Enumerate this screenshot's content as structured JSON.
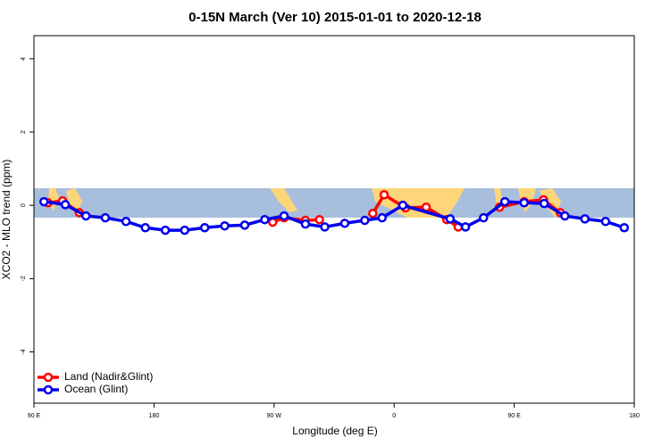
{
  "chart_data": {
    "type": "line",
    "title": "0-15N March (Ver 10)   2015-01-01 to 2020-12-18",
    "x_label": "Longitude (deg E)",
    "y_label": "XCO2 - MLO trend (ppm)",
    "xlim": [
      90,
      540
    ],
    "xticks": [
      {
        "value": 90,
        "label": "90 E"
      },
      180,
      {
        "value": 270,
        "label": "90 W"
      },
      {
        "value": 360,
        "label": "0"
      },
      {
        "value": 450,
        "label": "90 E"
      },
      {
        "value": 540,
        "label": "180"
      }
    ],
    "ylim": [
      -5.4,
      4.63
    ],
    "yticks": [
      -4,
      -2,
      0,
      2,
      4
    ],
    "legend": "bottom-left",
    "series": [
      {
        "name": "Land (Nadir&Glint)",
        "color": "#ff0000",
        "x": [
          100.5,
          111.5,
          124,
          null,
          269,
          277.5,
          293.5,
          304,
          null,
          344,
          352.5,
          368.5,
          384,
          399.5,
          408,
          null,
          439,
          457.5,
          472,
          484.5
        ],
        "values": [
          0.07,
          0.12,
          -0.2,
          null,
          -0.46,
          -0.34,
          -0.41,
          -0.39,
          null,
          -0.22,
          0.29,
          -0.07,
          -0.05,
          -0.39,
          -0.59,
          null,
          -0.05,
          0.1,
          0.15,
          -0.2
        ]
      },
      {
        "name": "Ocean (Glint)",
        "color": "#0000ee",
        "x": [
          97.5,
          113.5,
          129,
          143.5,
          159,
          173.5,
          188.5,
          203,
          218,
          233,
          248,
          263,
          277.5,
          293.5,
          308,
          323,
          338,
          351,
          366.5,
          402,
          413.5,
          427,
          443,
          457.5,
          472.5,
          488,
          503,
          518.5,
          532.5
        ],
        "values": [
          0.1,
          0.02,
          -0.29,
          -0.34,
          -0.44,
          -0.61,
          -0.68,
          -0.68,
          -0.61,
          -0.56,
          -0.54,
          -0.39,
          -0.29,
          -0.51,
          -0.59,
          -0.49,
          -0.41,
          -0.34,
          0,
          -0.37,
          -0.59,
          -0.34,
          0.1,
          0.07,
          0.05,
          -0.29,
          -0.37,
          -0.44,
          -0.61
        ]
      }
    ]
  }
}
